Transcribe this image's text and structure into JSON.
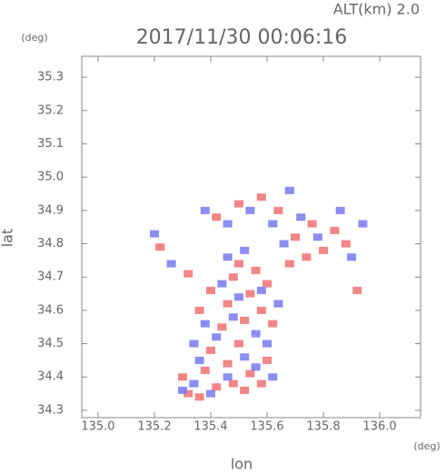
{
  "chart_data": {
    "type": "scatter",
    "title": "2017/11/30 00:06:16",
    "subtitle": "ALT(km) 2.0",
    "x_label": "lon",
    "y_label": "lat",
    "x_unit": "(deg)",
    "y_unit": "(deg)",
    "xlim": [
      134.942,
      136.145
    ],
    "ylim": [
      34.278,
      35.363
    ],
    "xticks": [
      {
        "value": 135.0,
        "label": "135.0"
      },
      135.2,
      135.4,
      135.6,
      135.8,
      {
        "value": 136.0,
        "label": "136.0"
      }
    ],
    "yticks": [
      34.3,
      34.4,
      34.5,
      34.6,
      34.7,
      34.8,
      34.9,
      {
        "value": 35.0,
        "label": "35.0"
      },
      35.1,
      35.2,
      35.3
    ],
    "series": [
      {
        "color": "#f07070",
        "x": [
          135.32,
          135.36,
          135.42,
          135.48,
          135.52,
          135.58,
          135.3,
          135.38,
          135.46,
          135.54,
          135.6,
          135.4,
          135.5,
          135.44,
          135.52,
          135.58,
          135.46,
          135.54,
          135.6,
          135.48,
          135.4,
          135.36,
          135.56,
          135.62,
          135.5,
          135.42,
          135.5,
          135.58,
          135.64,
          135.7,
          135.76,
          135.8,
          135.84,
          135.88,
          135.74,
          135.68,
          135.32,
          135.92,
          135.22
        ],
        "y": [
          34.35,
          34.34,
          34.37,
          34.38,
          34.36,
          34.38,
          34.4,
          34.42,
          34.44,
          34.41,
          34.45,
          34.48,
          34.5,
          34.55,
          34.57,
          34.6,
          34.62,
          34.65,
          34.68,
          34.7,
          34.66,
          34.6,
          34.72,
          34.56,
          34.74,
          34.88,
          34.92,
          34.94,
          34.9,
          34.82,
          34.86,
          34.78,
          34.84,
          34.8,
          34.76,
          34.74,
          34.71,
          34.66,
          34.79
        ]
      },
      {
        "color": "#7878f0",
        "x": [
          135.34,
          135.4,
          135.46,
          135.56,
          135.62,
          135.36,
          135.52,
          135.6,
          135.56,
          135.42,
          135.48,
          135.38,
          135.64,
          135.5,
          135.44,
          135.58,
          135.46,
          135.52,
          135.38,
          135.46,
          135.54,
          135.62,
          135.68,
          135.72,
          135.78,
          135.86,
          135.9,
          135.66,
          135.26,
          135.2,
          135.94,
          135.34,
          135.3
        ],
        "y": [
          34.38,
          34.35,
          34.4,
          34.43,
          34.4,
          34.45,
          34.46,
          34.5,
          34.53,
          34.52,
          34.58,
          34.56,
          34.62,
          34.64,
          34.68,
          34.66,
          34.76,
          34.78,
          34.9,
          34.86,
          34.9,
          34.86,
          34.96,
          34.88,
          34.82,
          34.9,
          34.76,
          34.8,
          34.74,
          34.83,
          34.86,
          34.5,
          34.36
        ]
      }
    ]
  }
}
